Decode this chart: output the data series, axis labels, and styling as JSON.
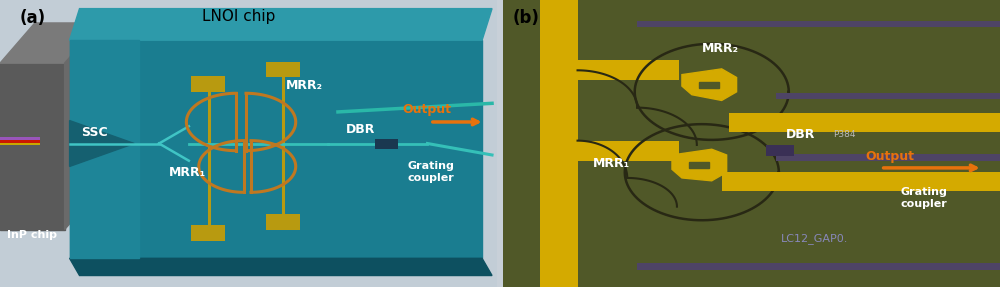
{
  "fig_bg": "#c8d0d8",
  "panel_a": {
    "label": "(a)",
    "title": "LNOI chip",
    "bg_light": "#c0cdd8",
    "lnoi_color": "#1a7d90",
    "lnoi_top": "#2d9aaa",
    "lnoi_bot": "#0d5060",
    "ssc_color": "#1e8598",
    "inp_dark": "#555555",
    "inp_mid": "#6a6a6a",
    "inp_light": "#7d7d7d",
    "waveguide_color": "#35b0b8",
    "waveguide2_color": "#2abdb0",
    "ring_color": "#c07820",
    "pad_color": "#b8a010",
    "dbr_color": "#1a3850",
    "arrow_color": "#E8720C",
    "output_color": "#E8720C",
    "text_color": "white",
    "title_color": "black",
    "label_color": "black"
  },
  "panel_b": {
    "label": "(b)",
    "bg_color": "#505828",
    "yellow": "#d4aa00",
    "ring_line": "#2a2a18",
    "purple": "#4e4466",
    "arrow_color": "#E8720C",
    "output_color": "#E8720C",
    "lc_color": "#8888bb",
    "text_white": "white",
    "dbr_tag": "#aaaaaa",
    "label_color": "black"
  }
}
